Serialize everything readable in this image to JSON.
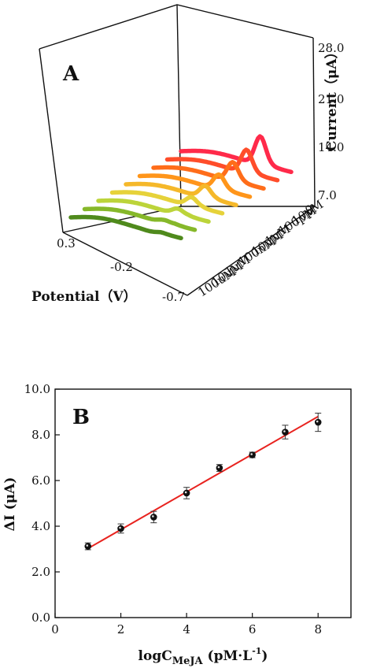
{
  "chart_data": [
    {
      "type": "line",
      "panel": "A",
      "xlabel": "Potential（V）",
      "ylabel": "Current（μA）",
      "x_ticks": [
        "0.3",
        "-0.2",
        "-0.7"
      ],
      "y_ticks": [
        "7.0",
        "14.0",
        "21.0",
        "28.0"
      ],
      "z_ticks": [
        "0",
        "10pM",
        "100pM",
        "1nM",
        "10nM",
        "100nM",
        "1uM",
        "10uM",
        "100uM"
      ],
      "xlim": [
        0.3,
        -0.7
      ],
      "ylim": [
        7.0,
        28.0
      ],
      "series": [
        {
          "name": "0",
          "color": "#ff2a4a",
          "peak_current": 24.5
        },
        {
          "name": "10pM",
          "color": "#ff4d2a",
          "peak_current": 22.0
        },
        {
          "name": "100pM",
          "color": "#ff6d1a",
          "peak_current": 20.0
        },
        {
          "name": "1nM",
          "color": "#ff951a",
          "peak_current": 18.0
        },
        {
          "name": "10nM",
          "color": "#f5b82a",
          "peak_current": 16.5
        },
        {
          "name": "100nM",
          "color": "#e6d23a",
          "peak_current": 15.0
        },
        {
          "name": "1uM",
          "color": "#bcd43a",
          "peak_current": 13.5
        },
        {
          "name": "10uM",
          "color": "#86b82a",
          "peak_current": 12.0
        },
        {
          "name": "100uM",
          "color": "#4f8a1c",
          "peak_current": 10.5
        }
      ]
    },
    {
      "type": "scatter",
      "panel": "B",
      "xlabel": "logC",
      "xlabel_sub": "MeJA",
      "xlabel_unit": " (pM·L",
      "xlabel_sup": "-1",
      "xlabel_end": ")",
      "ylabel": "ΔI (μA)",
      "xlim": [
        0,
        9
      ],
      "ylim": [
        0,
        10
      ],
      "x_ticks": [
        0,
        2,
        4,
        6,
        8
      ],
      "y_ticks": [
        "0.0",
        "2.0",
        "4.0",
        "6.0",
        "8.0",
        "10.0"
      ],
      "points": [
        {
          "x": 1,
          "y": 3.12,
          "err": 0.15
        },
        {
          "x": 2,
          "y": 3.9,
          "err": 0.2
        },
        {
          "x": 3,
          "y": 4.4,
          "err": 0.25
        },
        {
          "x": 4,
          "y": 5.45,
          "err": 0.25
        },
        {
          "x": 5,
          "y": 6.55,
          "err": 0.15
        },
        {
          "x": 6,
          "y": 7.12,
          "err": 0.12
        },
        {
          "x": 7,
          "y": 8.12,
          "err": 0.3
        },
        {
          "x": 8,
          "y": 8.55,
          "err": 0.4
        }
      ],
      "fit": {
        "slope": 0.825,
        "intercept": 2.2,
        "color": "#e8231f"
      }
    }
  ]
}
